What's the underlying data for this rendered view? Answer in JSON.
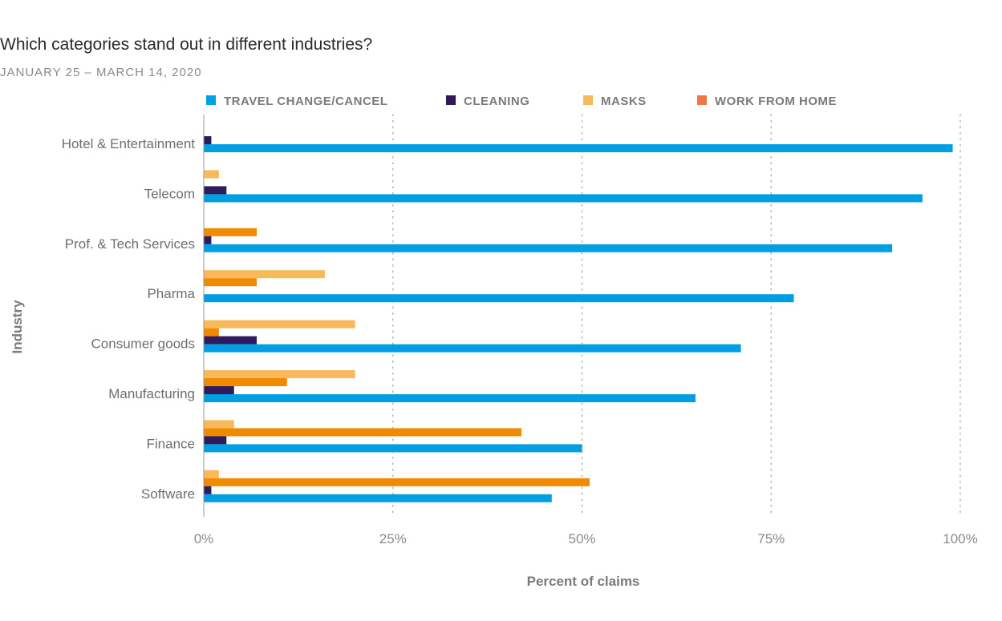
{
  "chart_data": {
    "type": "bar",
    "orientation": "horizontal",
    "title": "Which categories stand out in different industries?",
    "subtitle": "JANUARY 25 – MARCH 14, 2020",
    "xlabel": "Percent of claims",
    "ylabel": "Industry",
    "xlim": [
      0,
      100
    ],
    "xticks": [
      {
        "value": 0,
        "label": "0%"
      },
      {
        "value": 25,
        "label": "25%"
      },
      {
        "value": 50,
        "label": "50%"
      },
      {
        "value": 75,
        "label": "75%"
      },
      {
        "value": 100,
        "label": "100%"
      }
    ],
    "grid": "vertical dotted",
    "legend_position": "top",
    "categories": [
      "Hotel & Entertainment",
      "Telecom",
      "Prof. & Tech Services",
      "Pharma",
      "Consumer goods",
      "Manufacturing",
      "Finance",
      "Software"
    ],
    "series": [
      {
        "name": "TRAVEL CHANGE/CANCEL",
        "color": "#009fe3",
        "values": [
          99,
          95,
          91,
          78,
          71,
          65,
          50,
          46
        ]
      },
      {
        "name": "CLEANING",
        "color": "#2e1a5c",
        "values": [
          1,
          3,
          1,
          0,
          7,
          4,
          3,
          1
        ]
      },
      {
        "name": "MASKS",
        "color": "#f9b859",
        "values": [
          0,
          2,
          0,
          16,
          20,
          20,
          4,
          2
        ]
      },
      {
        "name": "WORK FROM HOME",
        "color": "#f08a00",
        "legend_color": "#ef7646",
        "values": [
          0,
          0,
          7,
          7,
          2,
          11,
          42,
          51
        ]
      }
    ]
  }
}
